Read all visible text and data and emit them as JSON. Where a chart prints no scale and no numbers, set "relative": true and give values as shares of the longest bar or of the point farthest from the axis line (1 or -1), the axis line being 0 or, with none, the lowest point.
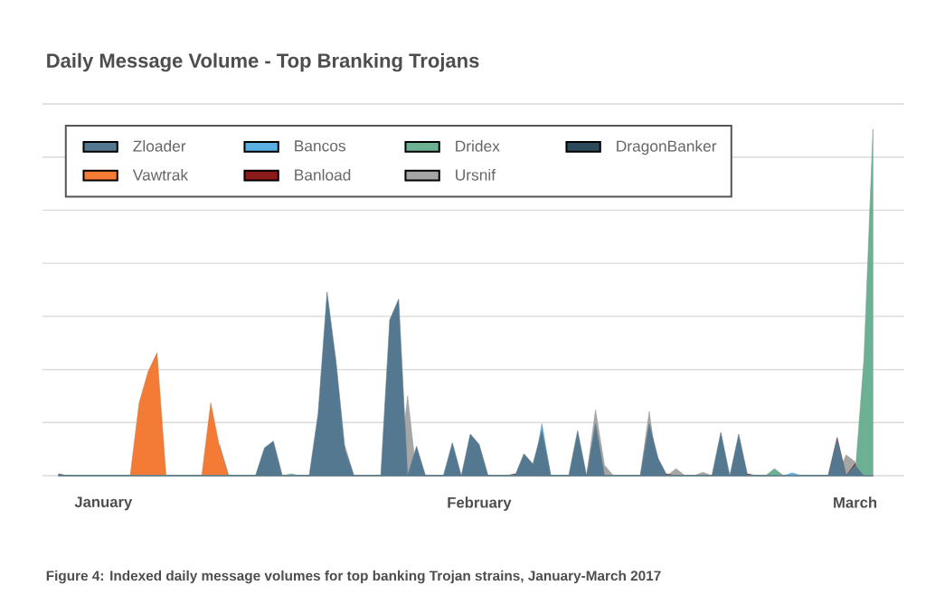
{
  "chart_data": {
    "type": "area",
    "title": "Daily Message Volume - Top Branking Trojans",
    "annotations": [
      "Figure 4: Indexed daily message volumes for top banking Trojan strains, January-March 2017"
    ],
    "relative": true,
    "grid": "y",
    "legend": "top left",
    "categories": [
      null,
      null,
      null,
      null,
      null,
      "January",
      null,
      null,
      null,
      null,
      null,
      null,
      null,
      null,
      null,
      null,
      null,
      null,
      null,
      null,
      null,
      null,
      null,
      null,
      null,
      null,
      null,
      null,
      null,
      null,
      null,
      null,
      null,
      null,
      null,
      null,
      null,
      null,
      null,
      null,
      null,
      null,
      null,
      null,
      null,
      null,
      null,
      "February",
      null,
      null,
      null,
      null,
      null,
      null,
      null,
      null,
      null,
      null,
      null,
      null,
      null,
      null,
      null,
      null,
      null,
      null,
      null,
      null,
      null,
      null,
      null,
      null,
      null,
      null,
      null,
      null,
      null,
      null,
      null,
      null,
      null,
      null,
      null,
      null,
      null,
      null,
      null,
      null,
      null,
      "March",
      null,
      null
    ],
    "series": [
      {
        "name": "Zloader",
        "color": "#53788f",
        "values": [
          0,
          0,
          0,
          0,
          0,
          0,
          0,
          0,
          0,
          0,
          0,
          0,
          0,
          0,
          0,
          0,
          0,
          0,
          0,
          0,
          0,
          0,
          0,
          0.08,
          0.1,
          0,
          0,
          0,
          0,
          0.18,
          0.53,
          0.33,
          0.075,
          0,
          0,
          0,
          0,
          0.45,
          0.51,
          0,
          0.085,
          0,
          0,
          0,
          0.095,
          0,
          0.12,
          0.09,
          0,
          0,
          0,
          0,
          0.063,
          0.034,
          0.13,
          0,
          0,
          0,
          0.13,
          0,
          0.15,
          0,
          0,
          0,
          0,
          0,
          0.15,
          0.05,
          0,
          0,
          0,
          0,
          0,
          0,
          0.125,
          0,
          0.12,
          0,
          0,
          0,
          0,
          0,
          0,
          0,
          0,
          0,
          0,
          0.105,
          0,
          0.03,
          0,
          0
        ]
      },
      {
        "name": "Bancos",
        "color": "#5aaee0",
        "values": [
          0,
          0,
          0,
          0,
          0,
          0,
          0,
          0,
          0,
          0,
          0,
          0,
          0,
          0,
          0,
          0,
          0,
          0,
          0,
          0,
          0,
          0,
          0,
          0,
          0,
          0,
          0,
          0,
          0,
          0,
          0,
          0,
          0,
          0,
          0,
          0,
          0,
          0,
          0,
          0,
          0,
          0,
          0,
          0,
          0,
          0,
          0,
          0,
          0,
          0,
          0,
          0,
          0,
          0,
          0.15,
          0,
          0,
          0,
          0,
          0,
          0,
          0,
          0,
          0,
          0,
          0,
          0,
          0,
          0,
          0,
          0,
          0,
          0,
          0,
          0,
          0,
          0,
          0,
          0,
          0,
          0,
          0,
          0.008,
          0,
          0,
          0,
          0,
          0,
          0,
          0,
          0,
          0
        ]
      },
      {
        "name": "Dridex",
        "color": "#6cb193",
        "values": [
          0,
          0,
          0,
          0,
          0,
          0,
          0,
          0,
          0,
          0,
          0,
          0,
          0,
          0,
          0,
          0,
          0,
          0,
          0,
          0,
          0,
          0,
          0,
          0,
          0,
          0,
          0.005,
          0,
          0,
          0,
          0,
          0,
          0,
          0,
          0,
          0,
          0,
          0,
          0,
          0,
          0,
          0,
          0,
          0,
          0,
          0,
          0,
          0,
          0,
          0,
          0,
          0,
          0,
          0,
          0,
          0,
          0,
          0,
          0,
          0,
          0,
          0,
          0,
          0,
          0,
          0,
          0,
          0,
          0,
          0,
          0,
          0,
          0,
          0,
          0,
          0,
          0,
          0,
          0,
          0,
          0.02,
          0,
          0,
          0,
          0,
          0,
          0,
          0,
          0,
          0,
          0.34,
          1
        ]
      },
      {
        "name": "DragonBanker",
        "color": "#2d4a5a",
        "values": [
          0.005,
          0,
          0,
          0,
          0,
          0,
          0,
          0,
          0,
          0,
          0,
          0,
          0,
          0,
          0,
          0,
          0,
          0,
          0,
          0,
          0,
          0,
          0,
          0,
          0,
          0,
          0,
          0,
          0,
          0,
          0,
          0,
          0,
          0,
          0,
          0,
          0,
          0,
          0,
          0,
          0,
          0,
          0,
          0,
          0,
          0,
          0,
          0,
          0,
          0,
          0,
          0,
          0,
          0,
          0,
          0,
          0,
          0,
          0,
          0,
          0,
          0,
          0,
          0,
          0,
          0,
          0,
          0,
          0,
          0,
          0,
          0,
          0,
          0,
          0,
          0,
          0,
          0,
          0,
          0,
          0,
          0,
          0,
          0,
          0,
          0,
          0,
          0,
          0,
          0,
          0,
          0
        ]
      },
      {
        "name": "Vawtrak",
        "color": "#f47b35",
        "values": [
          0,
          0,
          0,
          0,
          0,
          0,
          0,
          0,
          0,
          0.21,
          0.3,
          0.355,
          0,
          0,
          0,
          0,
          0,
          0.21,
          0.08,
          0,
          0,
          0,
          0,
          0,
          0,
          0,
          0,
          0,
          0,
          0,
          0,
          0,
          0,
          0,
          0,
          0,
          0,
          0,
          0,
          0,
          0,
          0,
          0,
          0,
          0,
          0,
          0,
          0,
          0,
          0,
          0,
          0,
          0,
          0,
          0,
          0,
          0,
          0,
          0,
          0,
          0,
          0,
          0,
          0,
          0,
          0,
          0,
          0,
          0,
          0,
          0,
          0,
          0,
          0,
          0,
          0,
          0,
          0,
          0,
          0,
          0,
          0,
          0,
          0,
          0,
          0,
          0,
          0,
          0,
          0,
          0,
          0
        ]
      },
      {
        "name": "Banload",
        "color": "#8b1a1a",
        "values": [
          0,
          0,
          0,
          0,
          0,
          0,
          0,
          0,
          0,
          0,
          0,
          0,
          0,
          0,
          0,
          0,
          0,
          0,
          0,
          0,
          0,
          0,
          0,
          0,
          0,
          0,
          0,
          0,
          0,
          0,
          0,
          0,
          0,
          0,
          0,
          0,
          0,
          0,
          0,
          0,
          0,
          0,
          0,
          0,
          0,
          0,
          0,
          0,
          0,
          0,
          0,
          0.005,
          0,
          0,
          0,
          0,
          0,
          0,
          0,
          0,
          0,
          0,
          0,
          0,
          0,
          0,
          0,
          0,
          0.005,
          0,
          0,
          0,
          0,
          0,
          0,
          0,
          0,
          0.005,
          0,
          0,
          0,
          0,
          0,
          0,
          0,
          0,
          0,
          0.11,
          0,
          0.035,
          0,
          0
        ]
      },
      {
        "name": "Ursnif",
        "color": "#a6a6a6",
        "values": [
          0,
          0,
          0,
          0,
          0,
          0,
          0,
          0,
          0,
          0,
          0,
          0,
          0,
          0,
          0,
          0,
          0,
          0,
          0.09,
          0,
          0,
          0,
          0,
          0,
          0,
          0,
          0,
          0,
          0,
          0,
          0,
          0,
          0.085,
          0,
          0,
          0,
          0,
          0,
          0,
          0.23,
          0,
          0,
          0,
          0,
          0,
          0,
          0,
          0,
          0,
          0,
          0,
          0,
          0,
          0,
          0,
          0,
          0,
          0,
          0,
          0,
          0.19,
          0.03,
          0,
          0,
          0,
          0,
          0.185,
          0,
          0,
          0.02,
          0,
          0,
          0.01,
          0,
          0,
          0,
          0,
          0,
          0,
          0,
          0,
          0,
          0,
          0,
          0,
          0,
          0,
          0,
          0.06,
          0.04,
          0,
          0
        ]
      }
    ]
  }
}
